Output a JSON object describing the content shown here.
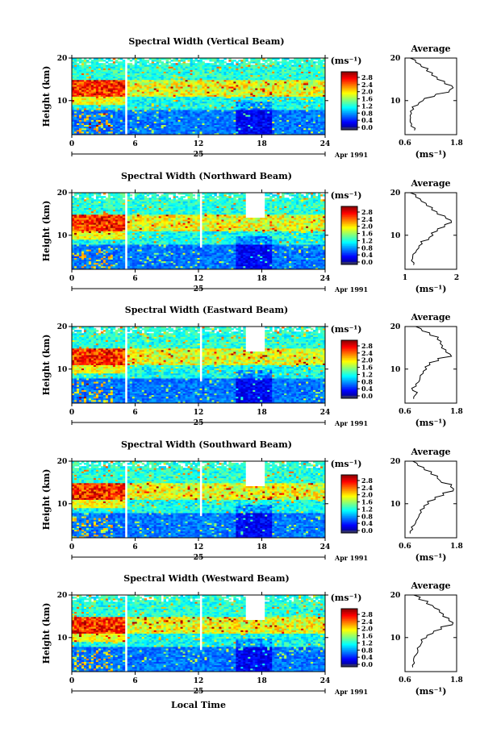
{
  "figure": {
    "xlabel": "Local Time",
    "date_suffix": "Apr 1991",
    "day_label": "25",
    "unit_label": "(ms⁻¹)"
  },
  "chart_data": [
    {
      "type": "heatmap",
      "title": "Spectral Width (Vertical Beam)",
      "ylabel": "Height (km)",
      "xlim": [
        0,
        24
      ],
      "ylim": [
        2,
        20
      ],
      "xticks": [
        0,
        6,
        12,
        18,
        24
      ],
      "yticks": [
        10,
        20
      ],
      "colorbar": {
        "label": "(ms⁻¹)",
        "range": [
          0,
          3.2
        ],
        "ticks": [
          "2.8",
          "2.4",
          "2.0",
          "1.6",
          "1.2",
          "0.8",
          "0.4",
          "0.0"
        ]
      },
      "profile": {
        "title": "Average",
        "xlabel": "(ms⁻¹)",
        "xlim": [
          0.6,
          1.8
        ],
        "xticklabels": [
          "0.6",
          "1.8"
        ],
        "yticks": [
          10,
          20
        ],
        "heights": [
          3,
          4,
          5,
          6,
          7,
          8,
          9,
          10,
          11,
          12,
          13,
          14,
          15,
          16,
          17,
          18,
          19,
          20
        ],
        "values": [
          0.82,
          0.74,
          0.72,
          0.73,
          0.75,
          0.8,
          0.9,
          1.02,
          1.28,
          1.62,
          1.72,
          1.52,
          1.35,
          1.22,
          1.1,
          0.98,
          0.85,
          0.72
        ]
      }
    },
    {
      "type": "heatmap",
      "title": "Spectral Width (Northward Beam)",
      "ylabel": "Height (km)",
      "xlim": [
        0,
        24
      ],
      "ylim": [
        2,
        20
      ],
      "xticks": [
        0,
        6,
        12,
        18,
        24
      ],
      "yticks": [
        10,
        20
      ],
      "colorbar": {
        "label": "(ms⁻¹)",
        "range": [
          0,
          3.2
        ],
        "ticks": [
          "2.8",
          "2.4",
          "2.0",
          "1.6",
          "1.2",
          "0.8",
          "0.4",
          "0.0"
        ]
      },
      "profile": {
        "title": "Average",
        "xlabel": "(ms⁻¹)",
        "xlim": [
          0.8,
          2.0
        ],
        "xticklabels": [
          "1",
          "2"
        ],
        "yticks": [
          10,
          20
        ],
        "heights": [
          3,
          4,
          5,
          6,
          7,
          8,
          9,
          10,
          11,
          12,
          13,
          14,
          15,
          16,
          17,
          18,
          19,
          20
        ],
        "values": [
          1.0,
          0.95,
          0.98,
          1.05,
          1.12,
          1.2,
          1.35,
          1.45,
          1.55,
          1.72,
          1.88,
          1.75,
          1.55,
          1.42,
          1.3,
          1.18,
          1.05,
          0.92
        ]
      }
    },
    {
      "type": "heatmap",
      "title": "Spectral Width (Eastward Beam)",
      "ylabel": "Height (km)",
      "xlim": [
        0,
        24
      ],
      "ylim": [
        2,
        20
      ],
      "xticks": [
        0,
        6,
        12,
        18,
        24
      ],
      "yticks": [
        10,
        20
      ],
      "colorbar": {
        "label": "(ms⁻¹)",
        "range": [
          0,
          3.2
        ],
        "ticks": [
          "2.8",
          "2.4",
          "2.0",
          "1.6",
          "1.2",
          "0.8",
          "0.4",
          "0.0"
        ]
      },
      "profile": {
        "title": "Average",
        "xlabel": "(ms⁻¹)",
        "xlim": [
          0.6,
          1.8
        ],
        "xticklabels": [
          "0.6",
          "1.8"
        ],
        "yticks": [
          10,
          20
        ],
        "heights": [
          3,
          4,
          5,
          6,
          7,
          8,
          9,
          10,
          11,
          12,
          13,
          14,
          15,
          16,
          17,
          18,
          19,
          20
        ],
        "values": [
          0.8,
          0.85,
          0.78,
          0.86,
          0.92,
          0.95,
          1.02,
          1.1,
          1.18,
          1.38,
          1.68,
          1.55,
          1.45,
          1.42,
          1.35,
          1.18,
          1.0,
          0.85
        ]
      }
    },
    {
      "type": "heatmap",
      "title": "Spectral Width (Southward Beam)",
      "ylabel": "Height (km)",
      "xlim": [
        0,
        24
      ],
      "ylim": [
        2,
        20
      ],
      "xticks": [
        0,
        6,
        12,
        18,
        24
      ],
      "yticks": [
        10,
        20
      ],
      "colorbar": {
        "label": "(ms⁻¹)",
        "range": [
          0,
          3.2
        ],
        "ticks": [
          "2.8",
          "2.4",
          "2.0",
          "1.6",
          "1.2",
          "0.8",
          "0.4",
          "0.0"
        ]
      },
      "profile": {
        "title": "Average",
        "xlabel": "(ms⁻¹)",
        "xlim": [
          0.6,
          1.8
        ],
        "xticklabels": [
          "0.6",
          "1.8"
        ],
        "yticks": [
          10,
          20
        ],
        "heights": [
          3,
          4,
          5,
          6,
          7,
          8,
          9,
          10,
          11,
          12,
          13,
          14,
          15,
          16,
          17,
          18,
          19,
          20
        ],
        "values": [
          0.72,
          0.78,
          0.82,
          0.86,
          0.92,
          0.98,
          1.05,
          1.15,
          1.3,
          1.5,
          1.72,
          1.66,
          1.45,
          1.35,
          1.2,
          1.05,
          0.9,
          0.78
        ]
      }
    },
    {
      "type": "heatmap",
      "title": "Spectral Width (Westward Beam)",
      "ylabel": "Height (km)",
      "xlim": [
        0,
        24
      ],
      "ylim": [
        2,
        20
      ],
      "xticks": [
        0,
        6,
        12,
        18,
        24
      ],
      "yticks": [
        10,
        20
      ],
      "colorbar": {
        "label": "(ms⁻¹)",
        "range": [
          0,
          3.2
        ],
        "ticks": [
          "2.8",
          "2.4",
          "2.0",
          "1.6",
          "1.2",
          "0.8",
          "0.4",
          "0.0"
        ]
      },
      "profile": {
        "title": "Average",
        "xlabel": "(ms⁻¹)",
        "xlim": [
          0.6,
          1.8
        ],
        "xticklabels": [
          "0.6",
          "1.8"
        ],
        "yticks": [
          10,
          20
        ],
        "heights": [
          3,
          4,
          5,
          6,
          7,
          8,
          9,
          10,
          11,
          12,
          13,
          14,
          15,
          16,
          17,
          18,
          19,
          20
        ],
        "values": [
          0.78,
          0.82,
          0.8,
          0.86,
          0.9,
          0.95,
          1.0,
          1.1,
          1.25,
          1.45,
          1.7,
          1.62,
          1.48,
          1.4,
          1.28,
          1.1,
          0.92,
          0.8
        ]
      }
    }
  ]
}
